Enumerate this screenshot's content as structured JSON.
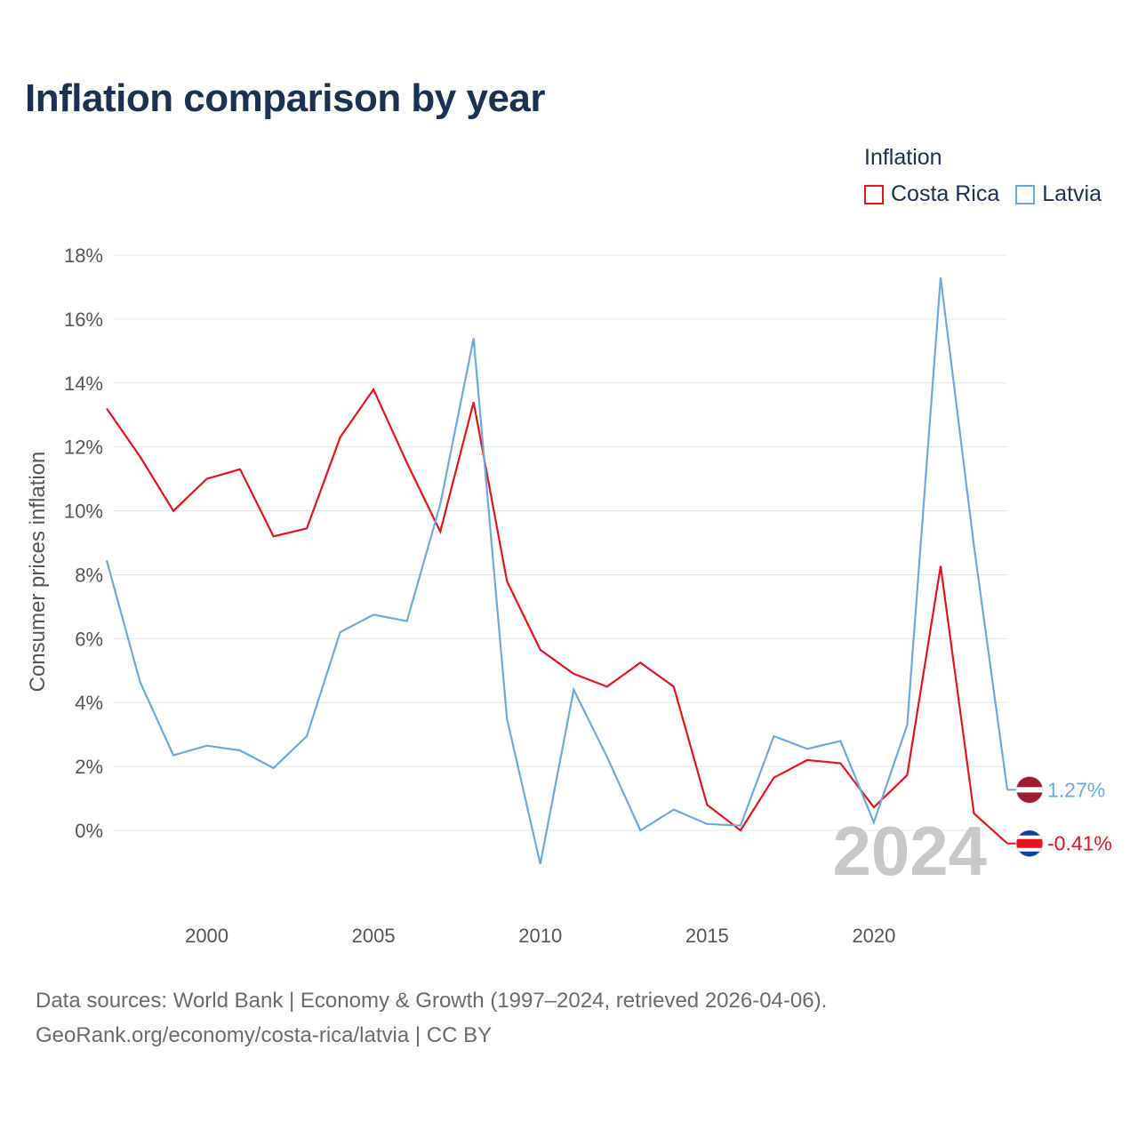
{
  "title": "Inflation comparison by year",
  "legend": {
    "title": "Inflation",
    "items": [
      {
        "name": "Costa Rica",
        "color": "#e8141b"
      },
      {
        "name": "Latvia",
        "color": "#6aaae4"
      }
    ]
  },
  "footer": {
    "line1": "Data sources: World Bank | Economy & Growth (1997–2024, retrieved 2026-04-06).",
    "line2": "GeoRank.org/economy/costa-rica/latvia | CC BY"
  },
  "chart_data": {
    "type": "line",
    "title": "Inflation comparison by year",
    "xlabel": "",
    "ylabel": "Consumer prices inflation",
    "xlim": [
      1997,
      2024
    ],
    "ylim": [
      -2.1,
      18
    ],
    "y_ticks": [
      0,
      2,
      4,
      6,
      8,
      10,
      12,
      14,
      16,
      18
    ],
    "y_tick_labels": [
      "0%",
      "2%",
      "4%",
      "6%",
      "8%",
      "10%",
      "12%",
      "14%",
      "16%",
      "18%"
    ],
    "x_ticks": [
      2000,
      2005,
      2010,
      2015,
      2020
    ],
    "x_tick_labels": [
      "2000",
      "2005",
      "2010",
      "2015",
      "2020"
    ],
    "grid": true,
    "legend_position": "top-right",
    "year_label": "2024",
    "x": [
      1997,
      1998,
      1999,
      2000,
      2001,
      2002,
      2003,
      2004,
      2005,
      2006,
      2007,
      2008,
      2009,
      2010,
      2011,
      2012,
      2013,
      2014,
      2015,
      2016,
      2017,
      2018,
      2019,
      2020,
      2021,
      2022,
      2023,
      2024
    ],
    "series": [
      {
        "name": "Costa Rica",
        "color": "#e8141b",
        "end_label": "-0.41%",
        "values": [
          13.2,
          11.7,
          10.0,
          11.0,
          11.3,
          9.2,
          9.45,
          12.3,
          13.8,
          11.5,
          9.35,
          13.4,
          7.8,
          5.65,
          4.9,
          4.5,
          5.25,
          4.5,
          0.8,
          0.0,
          1.65,
          2.2,
          2.1,
          0.72,
          1.73,
          8.27,
          0.53,
          -0.41
        ]
      },
      {
        "name": "Latvia",
        "color": "#6aaae4",
        "end_label": "1.27%",
        "values": [
          8.45,
          4.65,
          2.35,
          2.65,
          2.5,
          1.95,
          2.95,
          6.2,
          6.75,
          6.55,
          10.2,
          15.4,
          3.5,
          -1.05,
          4.4,
          2.3,
          0.0,
          0.65,
          0.2,
          0.15,
          2.95,
          2.55,
          2.8,
          0.25,
          3.3,
          17.3,
          8.9,
          1.27
        ]
      }
    ]
  }
}
